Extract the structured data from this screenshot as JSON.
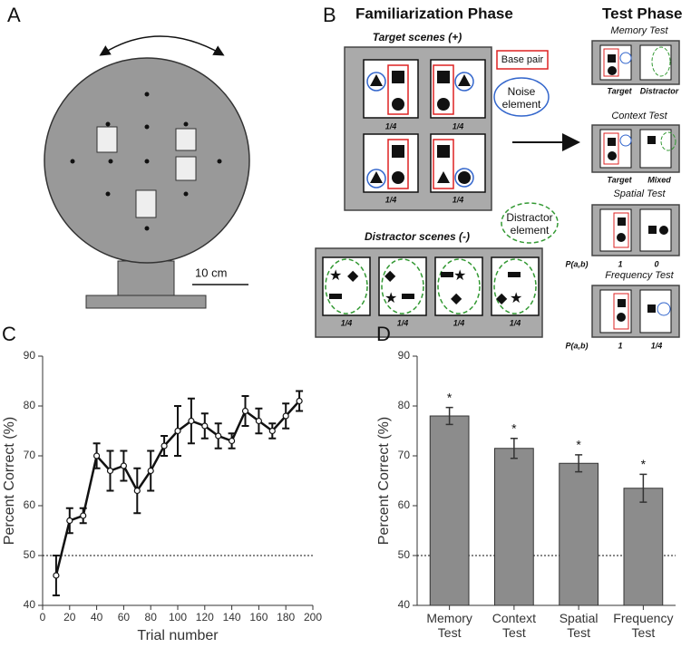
{
  "panel_a": {
    "label": "A",
    "scale_bar": "10 cm"
  },
  "panel_b": {
    "label": "B",
    "familiarization_title": "Familiarization Phase",
    "test_title": "Test Phase",
    "target_scenes": "Target scenes (+)",
    "target_fractions": [
      "1/4",
      "1/4",
      "1/4",
      "1/4"
    ],
    "base_pair": "Base pair",
    "noise_element": "Noise element",
    "distractor_scenes": "Distractor scenes (-)",
    "distractor_fractions": [
      "1/4",
      "1/4",
      "1/4",
      "1/4"
    ],
    "distractor_element": "Distractor element",
    "tests": [
      {
        "title": "Memory Test",
        "labels": [
          "Target",
          "Distractor"
        ]
      },
      {
        "title": "Context Test",
        "labels": [
          "Target",
          "Mixed"
        ]
      },
      {
        "title": "Spatial Test",
        "row_label": "P(a,b)",
        "labels": [
          "1",
          "0"
        ]
      },
      {
        "title": "Frequency Test",
        "row_label": "P(a,b)",
        "labels": [
          "1",
          "1/4"
        ]
      }
    ]
  },
  "chart_data": [
    {
      "type": "line",
      "panel_label": "C",
      "x": [
        10,
        20,
        30,
        40,
        50,
        60,
        70,
        80,
        90,
        100,
        110,
        120,
        130,
        140,
        150,
        160,
        170,
        180,
        190
      ],
      "values": [
        46,
        57,
        58,
        70,
        67,
        68,
        63,
        67,
        72,
        75,
        77,
        76,
        74,
        73,
        79,
        77,
        75,
        78,
        81
      ],
      "errors": [
        4,
        2.5,
        1.5,
        2.5,
        4,
        3,
        4.5,
        4,
        2,
        5,
        4.5,
        2.5,
        2.5,
        1.5,
        3,
        2.5,
        1.5,
        2.5,
        2
      ],
      "color": "#111",
      "xlim": [
        0,
        200
      ],
      "xticks": [
        0,
        20,
        40,
        60,
        80,
        100,
        120,
        140,
        160,
        180,
        200
      ],
      "ylim": [
        40,
        90
      ],
      "yticks": [
        40,
        50,
        60,
        70,
        80,
        90
      ],
      "xlabel": "Trial number",
      "ylabel": "Percent Correct (%)",
      "reference_line": 50
    },
    {
      "type": "bar",
      "panel_label": "D",
      "categories": [
        "Memory Test",
        "Context Test",
        "Spatial Test",
        "Frequency Test"
      ],
      "values": [
        78,
        71.5,
        68.5,
        63.5
      ],
      "errors": [
        1.7,
        2,
        1.7,
        2.8
      ],
      "annotations": [
        "*",
        "*",
        "*",
        "*"
      ],
      "color": "#8c8c8c",
      "ylim": [
        40,
        90
      ],
      "yticks": [
        40,
        50,
        60,
        70,
        80,
        90
      ],
      "ylabel": "Percent Correct (%)",
      "reference_line": 50
    }
  ]
}
